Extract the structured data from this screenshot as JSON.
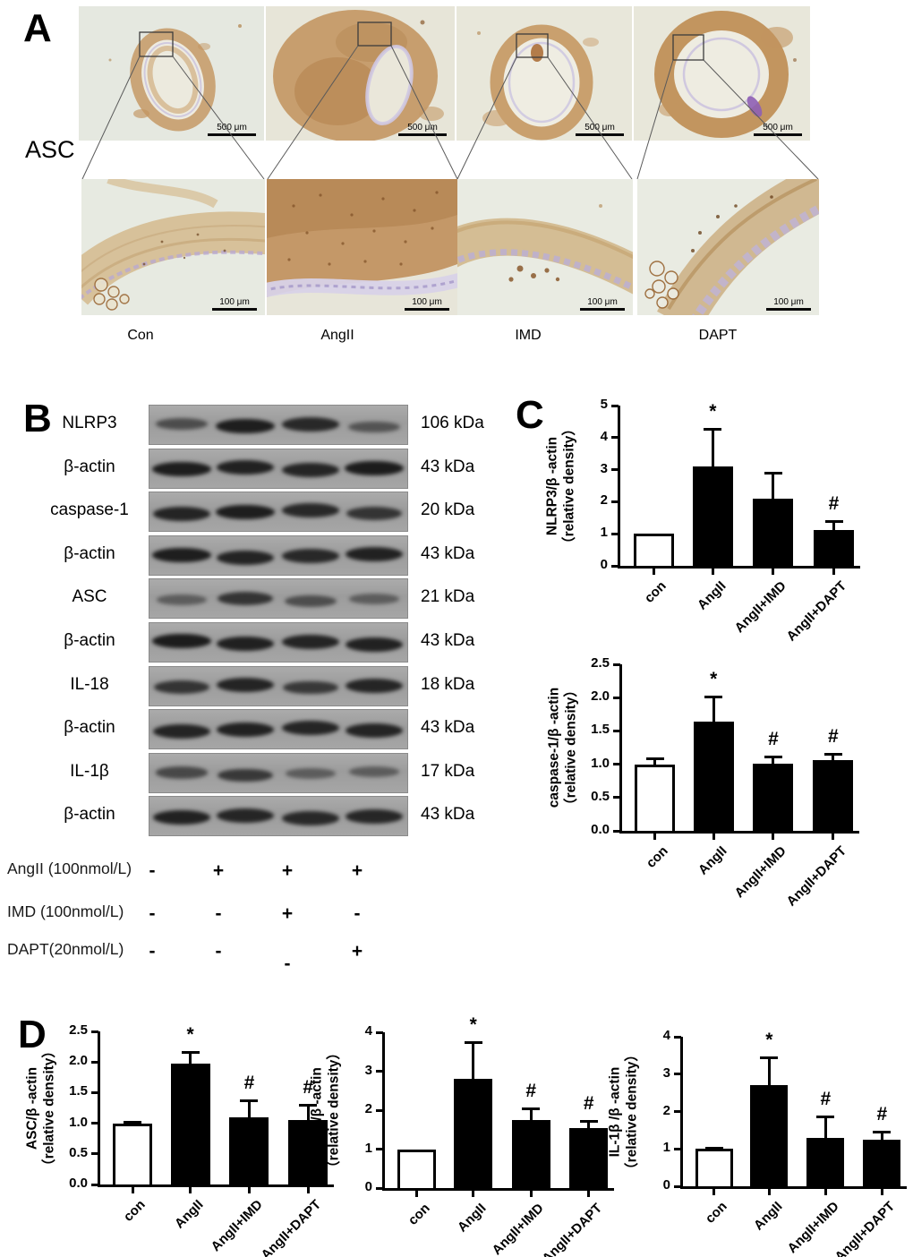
{
  "panels": {
    "a": "A",
    "b": "B",
    "c": "C",
    "d": "D"
  },
  "panel_a": {
    "stain_label": "ASC",
    "scale_top": "500 μm",
    "scale_bottom": "100 μm",
    "conditions": [
      "Con",
      "AngII",
      "IMD",
      "DAPT"
    ]
  },
  "panel_b": {
    "blots": [
      {
        "label": "NLRP3",
        "kda": "106 kDa",
        "lanes": [
          0.5,
          0.95,
          0.85,
          0.45
        ]
      },
      {
        "label": "β-actin",
        "kda": "43 kDa",
        "lanes": [
          0.95,
          0.92,
          0.88,
          0.97
        ]
      },
      {
        "label": "caspase-1",
        "kda": "20 kDa",
        "lanes": [
          0.9,
          0.95,
          0.85,
          0.75
        ]
      },
      {
        "label": "β-actin",
        "kda": "43 kDa",
        "lanes": [
          0.95,
          0.9,
          0.85,
          0.92
        ]
      },
      {
        "label": "ASC",
        "kda": "21 kDa",
        "lanes": [
          0.35,
          0.75,
          0.5,
          0.35
        ]
      },
      {
        "label": "β-actin",
        "kda": "43 kDa",
        "lanes": [
          0.97,
          0.93,
          0.9,
          0.92
        ]
      },
      {
        "label": "IL-18",
        "kda": "18 kDa",
        "lanes": [
          0.75,
          0.9,
          0.7,
          0.88
        ]
      },
      {
        "label": "β-actin",
        "kda": "43 kDa",
        "lanes": [
          0.9,
          0.92,
          0.88,
          0.9
        ]
      },
      {
        "label": "IL-1β",
        "kda": "17 kDa",
        "lanes": [
          0.55,
          0.7,
          0.35,
          0.35
        ]
      },
      {
        "label": "β-actin",
        "kda": "43 kDa",
        "lanes": [
          0.92,
          0.88,
          0.85,
          0.87
        ]
      }
    ],
    "treatments": [
      {
        "label": "AngII (100nmol/L)",
        "symbols": [
          "-",
          "+",
          "+",
          "+"
        ]
      },
      {
        "label": "IMD (100nmol/L)",
        "symbols": [
          "-",
          "-",
          "+",
          "-"
        ]
      },
      {
        "label": "DAPT(20nmol/L)",
        "symbols": [
          "-",
          "-",
          "-",
          "+"
        ]
      }
    ]
  },
  "chart_data": [
    {
      "type": "bar",
      "panel": "C",
      "ylabel": "NLRP3/β -actin",
      "ylabel2": "（relative density）",
      "categories": [
        "con",
        "AngII",
        "AngII+IMD",
        "AngII+DAPT"
      ],
      "values": [
        1.0,
        3.1,
        2.1,
        1.12
      ],
      "errors": [
        0,
        1.18,
        0.8,
        0.28
      ],
      "sig": [
        "",
        "*",
        "",
        "#"
      ],
      "ylim": [
        0,
        5
      ],
      "yticks": [
        "0",
        "1",
        "2",
        "3",
        "4",
        "5"
      ],
      "bar_colors": [
        "white",
        "black",
        "black",
        "black"
      ],
      "grid": false,
      "legend": "none"
    },
    {
      "type": "bar",
      "panel": "C",
      "ylabel": "caspase-1/β -actin",
      "ylabel2": "（relative density）",
      "categories": [
        "con",
        "AngII",
        "AngII+IMD",
        "AngII+DAPT"
      ],
      "values": [
        1.0,
        1.64,
        1.01,
        1.06
      ],
      "errors": [
        0.09,
        0.37,
        0.11,
        0.09
      ],
      "sig": [
        "",
        "*",
        "#",
        "#"
      ],
      "ylim": [
        0,
        2.5
      ],
      "yticks": [
        "0.0",
        "0.5",
        "1.0",
        "1.5",
        "2.0",
        "2.5"
      ],
      "bar_colors": [
        "white",
        "black",
        "black",
        "black"
      ],
      "grid": false,
      "legend": "none"
    },
    {
      "type": "bar",
      "panel": "D",
      "ylabel": "ASC/β -actin",
      "ylabel2": "（relative density）",
      "categories": [
        "con",
        "AngII",
        "AngII+IMD",
        "AngII+DAPT"
      ],
      "values": [
        1.0,
        1.97,
        1.1,
        1.05
      ],
      "errors": [
        0.03,
        0.19,
        0.27,
        0.25
      ],
      "sig": [
        "",
        "*",
        "#",
        "#"
      ],
      "ylim": [
        0,
        2.5
      ],
      "yticks": [
        "0.0",
        "0.5",
        "1.0",
        "1.5",
        "2.0",
        "2.5"
      ],
      "bar_colors": [
        "white",
        "black",
        "black",
        "black"
      ],
      "grid": false,
      "legend": "none"
    },
    {
      "type": "bar",
      "panel": "D",
      "ylabel": "IL-18/β -actin",
      "ylabel2": "（relative density）",
      "categories": [
        "con",
        "AngII",
        "AngII+IMD",
        "AngII+DAPT"
      ],
      "values": [
        1.0,
        2.8,
        1.75,
        1.55
      ],
      "errors": [
        0,
        0.95,
        0.3,
        0.17
      ],
      "sig": [
        "",
        "*",
        "#",
        "#"
      ],
      "ylim": [
        0,
        4
      ],
      "yticks": [
        "0",
        "1",
        "2",
        "3",
        "4"
      ],
      "bar_colors": [
        "white",
        "black",
        "black",
        "black"
      ],
      "grid": false,
      "legend": "none"
    },
    {
      "type": "bar",
      "panel": "D",
      "ylabel": "IL-1β /β -actin",
      "ylabel2": "（relative density）",
      "categories": [
        "con",
        "AngII",
        "AngII+IMD",
        "AngII+DAPT"
      ],
      "values": [
        1.0,
        2.7,
        1.3,
        1.25
      ],
      "errors": [
        0.04,
        0.74,
        0.57,
        0.2
      ],
      "sig": [
        "",
        "*",
        "#",
        "#"
      ],
      "ylim": [
        0,
        4
      ],
      "yticks": [
        "0",
        "1",
        "2",
        "3",
        "4"
      ],
      "bar_colors": [
        "white",
        "black",
        "black",
        "black"
      ],
      "grid": false,
      "legend": "none"
    }
  ]
}
